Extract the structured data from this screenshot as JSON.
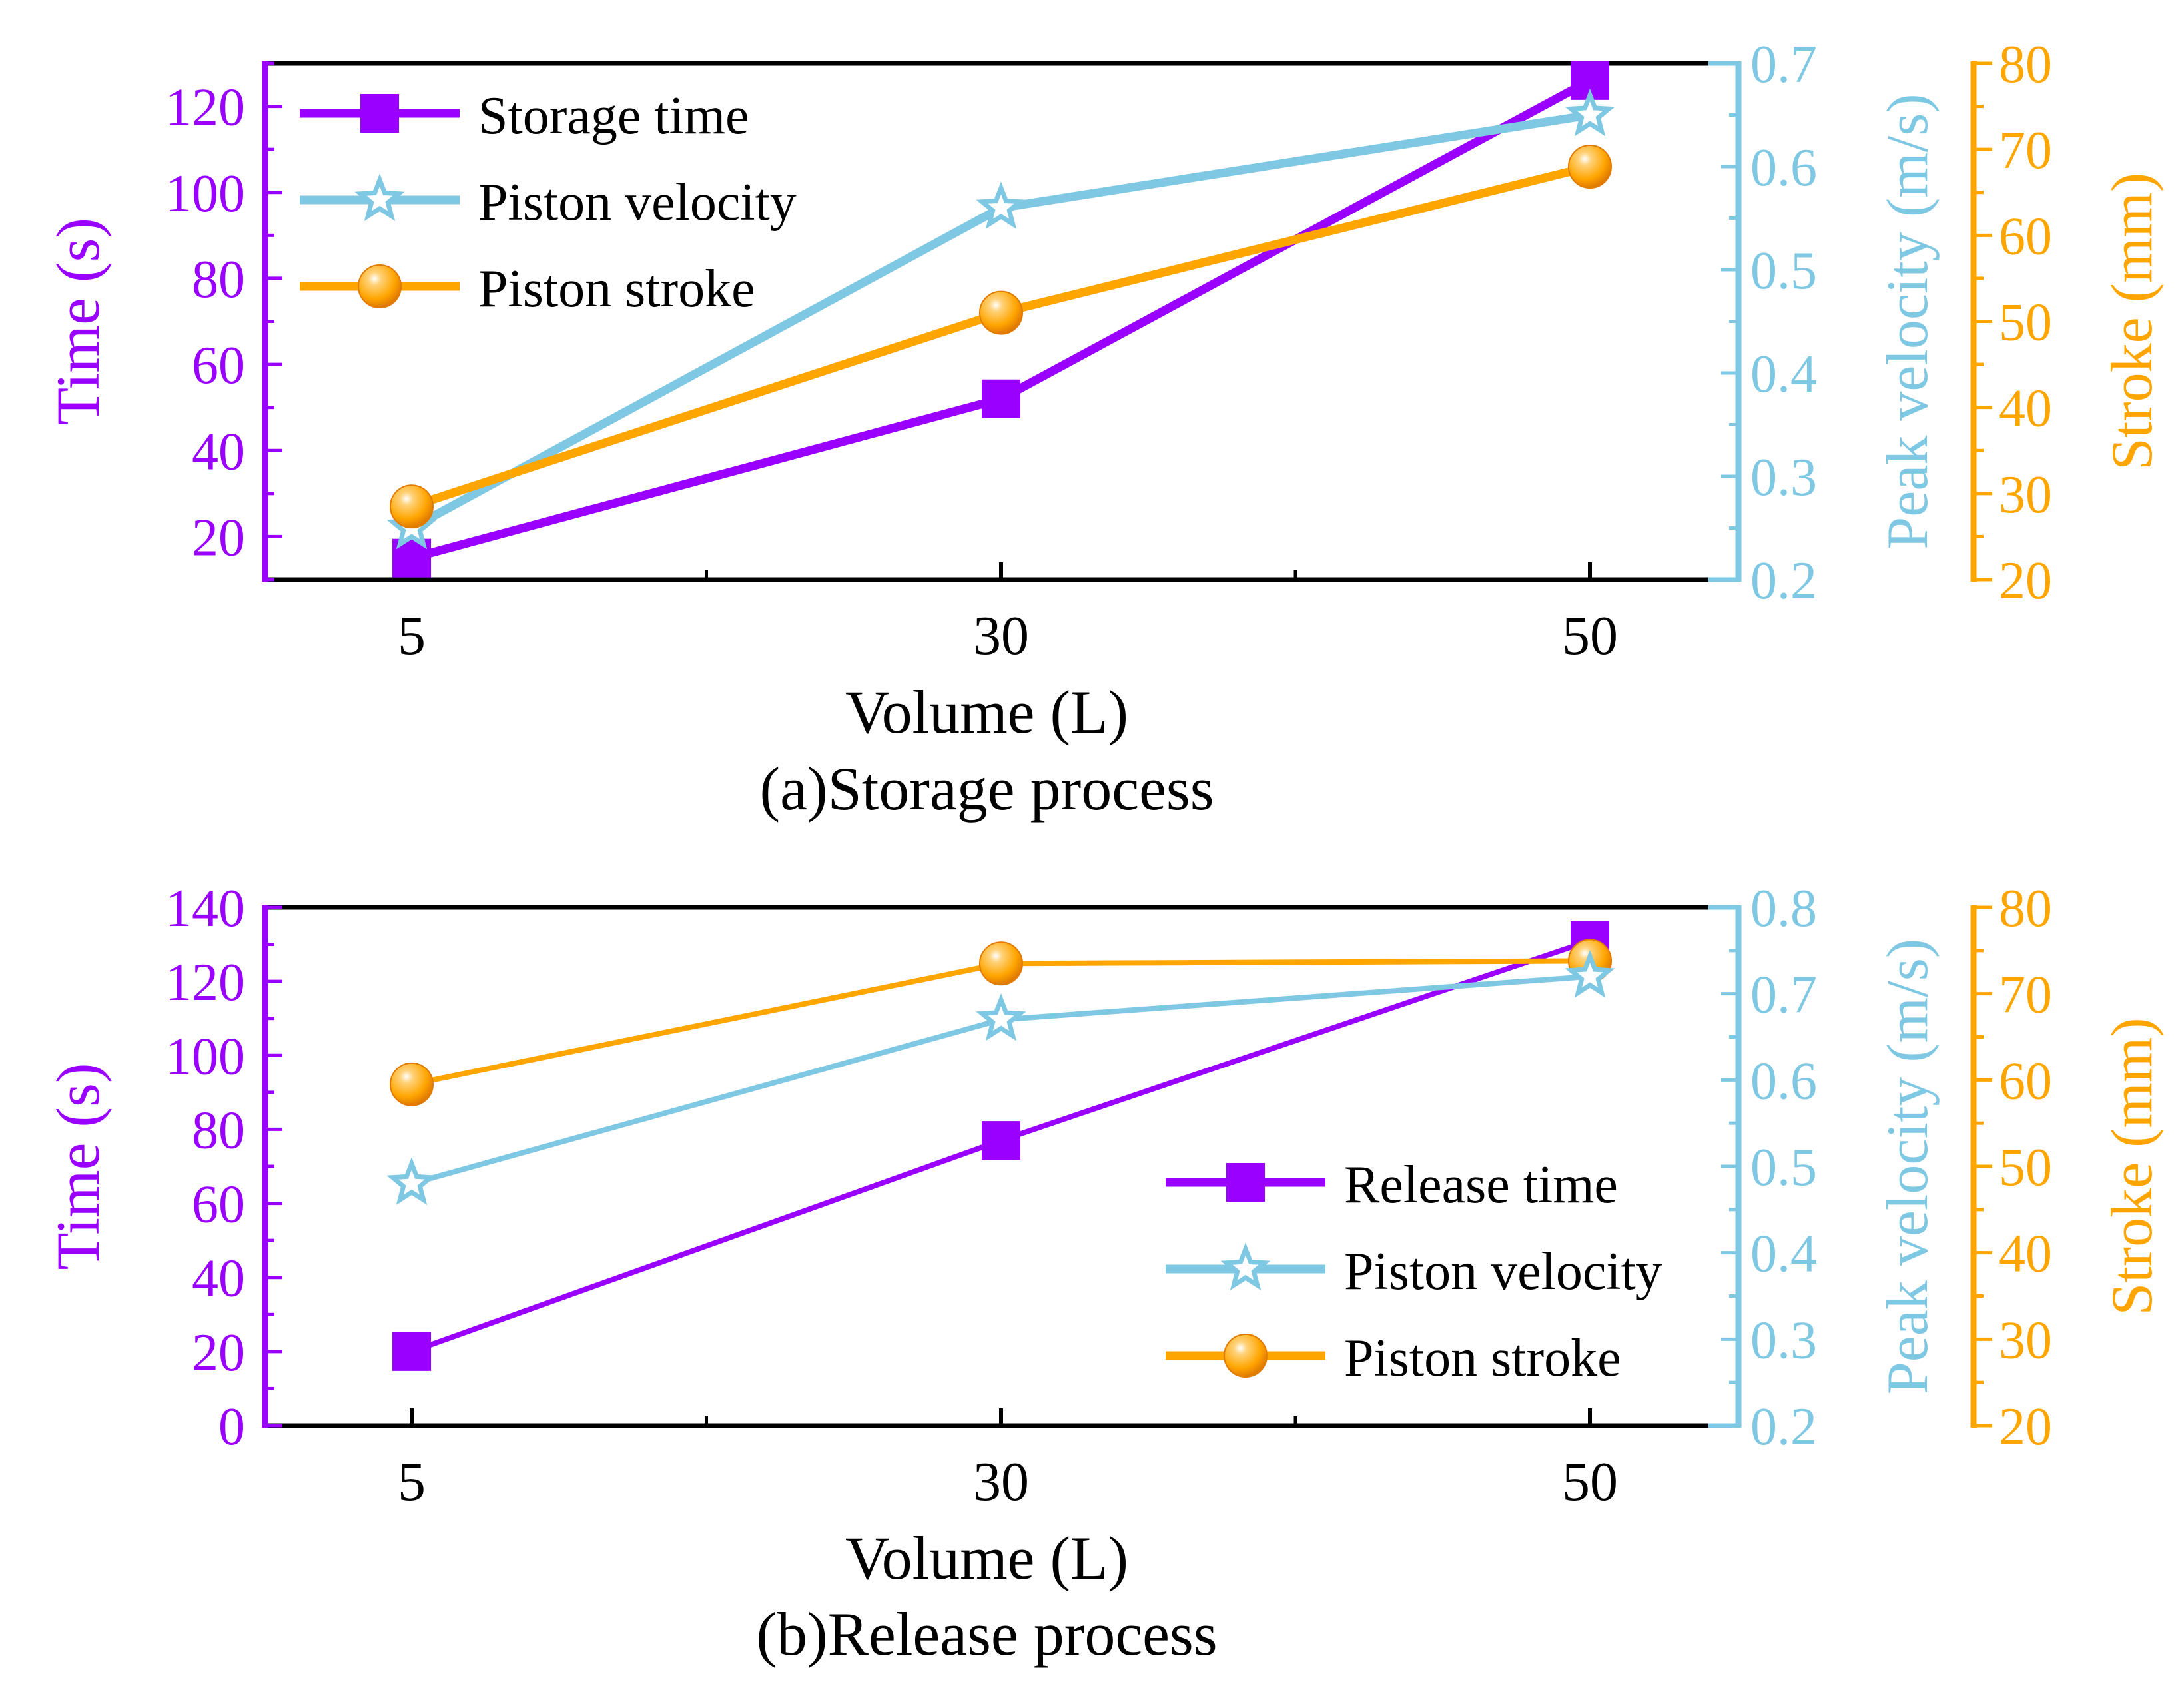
{
  "colors": {
    "time": "#9900FF",
    "velocity": "#7EC8E3",
    "stroke": "#FFA500",
    "axis": "#000000"
  },
  "chart_data": [
    {
      "type": "line",
      "caption": "(a)Storage process",
      "categories": [
        "5",
        "30",
        "50"
      ],
      "xlabel": "Volume (L)",
      "axes": {
        "left": {
          "label": "Time (s)",
          "min": 10,
          "max": 130,
          "ticks": [
            20,
            40,
            60,
            80,
            100,
            120
          ],
          "tick_labels": [
            "20",
            "40",
            "60",
            "80",
            "100",
            "120"
          ],
          "minor_step": 10
        },
        "right1": {
          "label": "Peak velocity (m/s)",
          "min": 0.2,
          "max": 0.7,
          "ticks": [
            0.2,
            0.3,
            0.4,
            0.5,
            0.6,
            0.7
          ],
          "tick_labels": [
            "0.2",
            "0.3",
            "0.4",
            "0.5",
            "0.6",
            "0.7"
          ],
          "minor_step": 0.05
        },
        "right2": {
          "label": "Stroke (mm)",
          "min": 20,
          "max": 80,
          "ticks": [
            20,
            30,
            40,
            50,
            60,
            70,
            80
          ],
          "tick_labels": [
            "20",
            "30",
            "40",
            "50",
            "60",
            "70",
            "80"
          ],
          "minor_step": 5
        }
      },
      "legend_position": "top-left",
      "series": [
        {
          "name": "Storage time",
          "axis": "left",
          "marker": "square",
          "color": "#9900FF",
          "values": [
            15,
            52,
            126
          ]
        },
        {
          "name": "Piston velocity",
          "axis": "right1",
          "marker": "star",
          "color": "#7EC8E3",
          "values": [
            0.25,
            0.56,
            0.65
          ]
        },
        {
          "name": "Piston stroke",
          "axis": "right2",
          "marker": "ball",
          "color": "#FFA500",
          "values": [
            28.5,
            51,
            68
          ]
        }
      ]
    },
    {
      "type": "line",
      "caption": "(b)Release process",
      "categories": [
        "5",
        "30",
        "50"
      ],
      "xlabel": "Volume (L)",
      "axes": {
        "left": {
          "label": "Time (s)",
          "min": 0,
          "max": 140,
          "ticks": [
            0,
            20,
            40,
            60,
            80,
            100,
            120,
            140
          ],
          "tick_labels": [
            "0",
            "20",
            "40",
            "60",
            "80",
            "100",
            "120",
            "140"
          ],
          "minor_step": 10
        },
        "right1": {
          "label": "Peak velocity (m/s)",
          "min": 0.2,
          "max": 0.8,
          "ticks": [
            0.2,
            0.3,
            0.4,
            0.5,
            0.6,
            0.7,
            0.8
          ],
          "tick_labels": [
            "0.2",
            "0.3",
            "0.4",
            "0.5",
            "0.6",
            "0.7",
            "0.8"
          ],
          "minor_step": 0.05
        },
        "right2": {
          "label": "Stroke (mm)",
          "min": 20,
          "max": 80,
          "ticks": [
            20,
            30,
            40,
            50,
            60,
            70,
            80
          ],
          "tick_labels": [
            "20",
            "30",
            "40",
            "50",
            "60",
            "70",
            "80"
          ],
          "minor_step": 5
        }
      },
      "legend_position": "bottom-right",
      "series": [
        {
          "name": "Release time",
          "axis": "left",
          "marker": "square",
          "color": "#9900FF",
          "values": [
            20,
            77,
            131
          ]
        },
        {
          "name": "Piston velocity",
          "axis": "right1",
          "marker": "star",
          "color": "#7EC8E3",
          "values": [
            0.48,
            0.67,
            0.72
          ]
        },
        {
          "name": "Piston stroke",
          "axis": "right2",
          "marker": "ball",
          "color": "#FFA500",
          "values": [
            59.5,
            73.5,
            73.8
          ]
        }
      ]
    }
  ]
}
